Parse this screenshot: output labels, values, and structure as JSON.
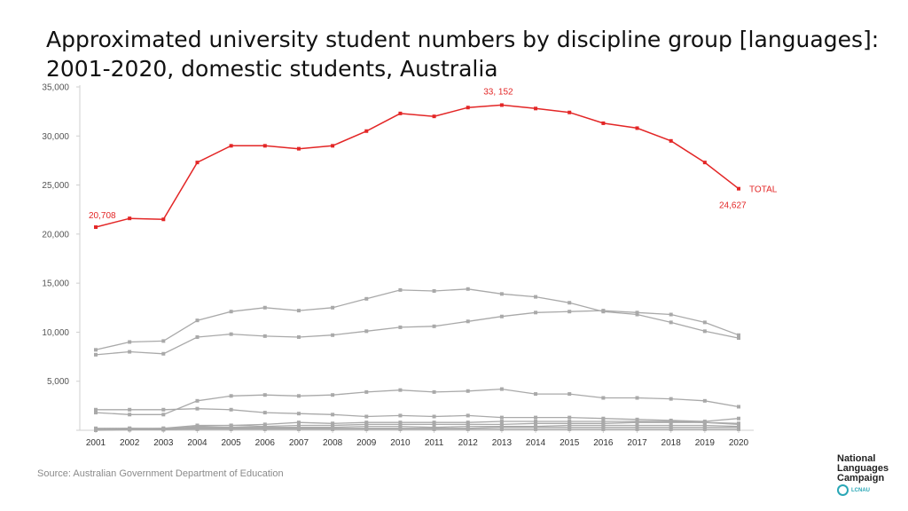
{
  "title_line1": "Approximated university student numbers by discipline group [languages]:",
  "title_line2": "2001-2020, domestic students, Australia",
  "source": "Source: Australian Government Department of Education",
  "logo": {
    "line1": "National",
    "line2": "Languages",
    "line3": "Campaign",
    "sub": "LCNAU"
  },
  "colors": {
    "total": "#e32626",
    "other": "#a9a9a9",
    "axis": "#cfcfcf",
    "tick_text": "#555555"
  },
  "chart_data": {
    "type": "line",
    "x": [
      2001,
      2002,
      2003,
      2004,
      2005,
      2006,
      2007,
      2008,
      2009,
      2010,
      2011,
      2012,
      2013,
      2014,
      2015,
      2016,
      2017,
      2018,
      2019,
      2020
    ],
    "ylim": [
      0,
      35000
    ],
    "yticks": [
      0,
      5000,
      10000,
      15000,
      20000,
      25000,
      30000,
      35000
    ],
    "ytick_labels": [
      "",
      "5,000",
      "10,000",
      "15,000",
      "20,000",
      "25,000",
      "30,000",
      "35,000"
    ],
    "grid": false,
    "series": [
      {
        "name": "TOTAL",
        "highlight": true,
        "values": [
          20708,
          21600,
          21500,
          27300,
          29000,
          29000,
          28700,
          29000,
          30500,
          32300,
          32000,
          32900,
          33152,
          32800,
          32400,
          31300,
          30800,
          29500,
          27300,
          24627
        ]
      },
      {
        "values": [
          8200,
          9000,
          9100,
          11200,
          12100,
          12500,
          12200,
          12500,
          13400,
          14300,
          14200,
          14400,
          13900,
          13600,
          13000,
          12100,
          11800,
          11000,
          10100,
          9400
        ]
      },
      {
        "values": [
          7700,
          8000,
          7800,
          9500,
          9800,
          9600,
          9500,
          9700,
          10100,
          10500,
          10600,
          11100,
          11600,
          12000,
          12100,
          12200,
          12000,
          11800,
          11000,
          9700
        ]
      },
      {
        "values": [
          2100,
          2100,
          2100,
          2200,
          2100,
          1800,
          1700,
          1600,
          1400,
          1500,
          1400,
          1500,
          1300,
          1300,
          1300,
          1200,
          1100,
          1000,
          900,
          1200
        ]
      },
      {
        "values": [
          1800,
          1600,
          1600,
          3000,
          3500,
          3600,
          3500,
          3600,
          3900,
          4100,
          3900,
          4000,
          4200,
          3700,
          3700,
          3300,
          3300,
          3200,
          3000,
          2400
        ]
      },
      {
        "values": [
          200,
          200,
          200,
          500,
          500,
          600,
          800,
          700,
          800,
          800,
          800,
          800,
          900,
          900,
          900,
          900,
          900,
          900,
          800,
          700
        ]
      },
      {
        "values": [
          100,
          200,
          100,
          400,
          500,
          400,
          500,
          500,
          600,
          600,
          600,
          600,
          600,
          700,
          700,
          700,
          800,
          800,
          800,
          600
        ]
      },
      {
        "values": [
          100,
          100,
          200,
          300,
          300,
          300,
          300,
          300,
          400,
          400,
          300,
          400,
          400,
          400,
          500,
          500,
          500,
          500,
          500,
          400
        ]
      },
      {
        "values": [
          50,
          100,
          100,
          200,
          200,
          200,
          200,
          200,
          200,
          200,
          200,
          200,
          300,
          300,
          300,
          300,
          300,
          300,
          300,
          300
        ]
      },
      {
        "values": [
          0,
          50,
          50,
          100,
          100,
          100,
          100,
          100,
          100,
          100,
          100,
          100,
          100,
          100,
          100,
          100,
          100,
          100,
          100,
          100
        ]
      }
    ],
    "annotations": {
      "start_label": "20,708",
      "peak_label": "33, 152",
      "end_label": "24,627",
      "series_label": "TOTAL"
    }
  }
}
